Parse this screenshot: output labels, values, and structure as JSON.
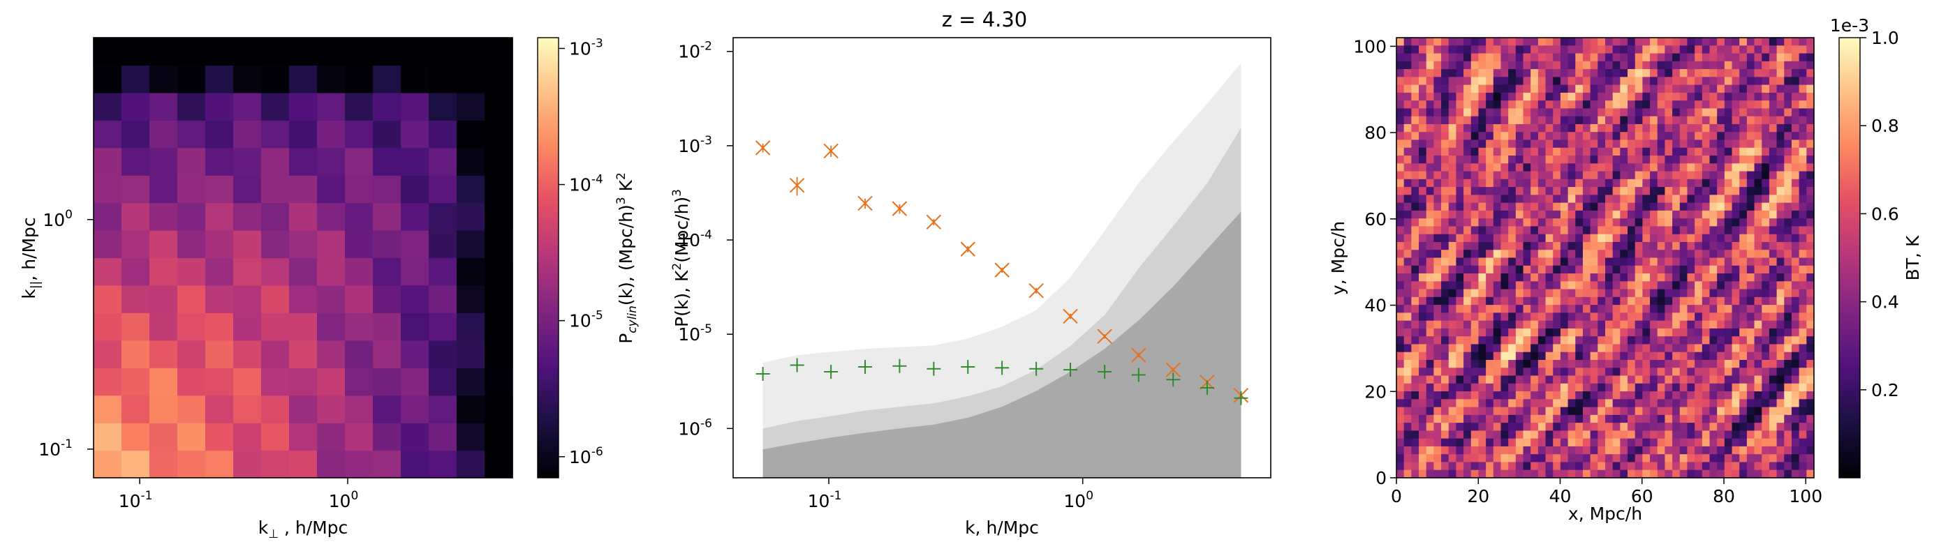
{
  "chart_data": [
    {
      "type": "heatmap",
      "title": "",
      "xlabel": "k",
      "xlabel_sub": "⊥",
      "xlabel_unit": " , h/Mpc",
      "ylabel": "k",
      "ylabel_sub": "||",
      "ylabel_unit": ", h/Mpc",
      "xscale": "log",
      "yscale": "log",
      "xlim": [
        0.06,
        6.2
      ],
      "ylim": [
        0.075,
        6.2
      ],
      "xticks": [
        {
          "v": 0.1,
          "label": "10",
          "exp": "-1"
        },
        {
          "v": 1,
          "label": "10",
          "exp": "0"
        }
      ],
      "yticks": [
        {
          "v": 0.1,
          "label": "10",
          "exp": "-1"
        },
        {
          "v": 1,
          "label": "10",
          "exp": "0"
        }
      ],
      "colorbar": {
        "label": "P",
        "label_sub": "cylin",
        "label_rest": "(k), (Mpc/h)",
        "label_exp": "3",
        "label_tail": " K",
        "label_exp2": "2",
        "scale": "log",
        "range": [
          7e-07,
          0.0012
        ],
        "ticks": [
          {
            "v": 0.001,
            "label": "10",
            "exp": "-3"
          },
          {
            "v": 0.0001,
            "label": "10",
            "exp": "-4"
          },
          {
            "v": 1e-05,
            "label": "10",
            "exp": "-5"
          },
          {
            "v": 1e-06,
            "label": "10",
            "exp": "-6"
          }
        ]
      },
      "colormap": "magma",
      "grid": false
    },
    {
      "type": "scatter",
      "title": "z = 4.30",
      "xlabel": "k, h/Mpc",
      "ylabel": "P(k), K",
      "ylabel_sup": "2",
      "ylabel_rest": "(Mpc/h)",
      "ylabel_sup2": "3",
      "xscale": "log",
      "yscale": "log",
      "xlim": [
        0.042,
        5.5
      ],
      "ylim": [
        3e-07,
        0.014
      ],
      "xticks": [
        {
          "v": 0.1,
          "label": "10",
          "exp": "-1"
        },
        {
          "v": 1,
          "label": "10",
          "exp": "0"
        }
      ],
      "yticks": [
        {
          "v": 0.01,
          "label": "10",
          "exp": "-2"
        },
        {
          "v": 0.001,
          "label": "10",
          "exp": "-3"
        },
        {
          "v": 0.0001,
          "label": "10",
          "exp": "-4"
        },
        {
          "v": 1e-05,
          "label": "10",
          "exp": "-5"
        },
        {
          "v": 1e-06,
          "label": "10",
          "exp": "-6"
        }
      ],
      "series": [
        {
          "marker": "x",
          "color": "#e8701a",
          "x": [
            0.055,
            0.075,
            0.102,
            0.139,
            0.19,
            0.259,
            0.353,
            0.481,
            0.656,
            0.894,
            1.22,
            1.66,
            2.27,
            3.09,
            4.2
          ],
          "y": [
            0.00095,
            0.00038,
            0.00088,
            0.000245,
            0.000215,
            0.000155,
            8e-05,
            4.8e-05,
            2.9e-05,
            1.55e-05,
            9.5e-06,
            6e-06,
            4.2e-06,
            3.1e-06,
            2.25e-06
          ],
          "err": [
            0.0001,
            8.5e-05,
            0.00012,
            3e-05,
            2.5e-05,
            1.2e-05,
            6e-06,
            3e-06,
            2e-06,
            1e-06,
            5e-07,
            3e-07,
            2e-07,
            1.5e-07,
            1e-07
          ]
        },
        {
          "marker": "+",
          "color": "#2e8b2e",
          "x": [
            0.055,
            0.075,
            0.102,
            0.139,
            0.19,
            0.259,
            0.353,
            0.481,
            0.656,
            0.894,
            1.22,
            1.66,
            2.27,
            3.09,
            4.2
          ],
          "y": [
            3.8e-06,
            4.7e-06,
            4e-06,
            4.5e-06,
            4.6e-06,
            4.3e-06,
            4.5e-06,
            4.4e-06,
            4.3e-06,
            4.2e-06,
            4e-06,
            3.7e-06,
            3.3e-06,
            2.7e-06,
            2.1e-06
          ]
        }
      ],
      "bands": [
        {
          "color": "#ececec",
          "x": [
            0.055,
            0.075,
            0.102,
            0.139,
            0.19,
            0.259,
            0.353,
            0.481,
            0.656,
            0.894,
            1.22,
            1.66,
            2.27,
            3.09,
            4.2
          ],
          "y": [
            5e-06,
            6e-06,
            6.5e-06,
            7e-06,
            7.3e-06,
            7.6e-06,
            9e-06,
            1.2e-05,
            1.8e-05,
            4e-05,
            0.000125,
            0.0004,
            0.0011,
            0.0028,
            0.0075
          ]
        },
        {
          "color": "#d2d2d2",
          "x": [
            0.055,
            0.075,
            0.102,
            0.139,
            0.19,
            0.259,
            0.353,
            0.481,
            0.656,
            0.894,
            1.22,
            1.66,
            2.27,
            3.09,
            4.2
          ],
          "y": [
            1e-06,
            1.2e-06,
            1.35e-06,
            1.55e-06,
            1.7e-06,
            1.85e-06,
            2.2e-06,
            2.8e-06,
            4.2e-06,
            7.5e-06,
            1.6e-05,
            5e-05,
            0.00014,
            0.0004,
            0.00155
          ]
        },
        {
          "color": "#a9a9a9",
          "x": [
            0.055,
            0.075,
            0.102,
            0.139,
            0.19,
            0.259,
            0.353,
            0.481,
            0.656,
            0.894,
            1.22,
            1.66,
            2.27,
            3.09,
            4.2
          ],
          "y": [
            6e-07,
            7e-07,
            8e-07,
            9e-07,
            1e-06,
            1.1e-06,
            1.3e-06,
            1.7e-06,
            2.5e-06,
            4e-06,
            7e-06,
            1.4e-05,
            3.2e-05,
            8e-05,
            0.0002
          ]
        }
      ],
      "grid": false
    },
    {
      "type": "heatmap",
      "title": "",
      "xlabel": "x, Mpc/h",
      "ylabel": "y, Mpc/h",
      "xlim": [
        0,
        102
      ],
      "ylim": [
        0,
        102
      ],
      "xticks": [
        0,
        20,
        40,
        60,
        80,
        100
      ],
      "yticks": [
        0,
        20,
        40,
        60,
        80,
        100
      ],
      "colorbar": {
        "label": "BT, K",
        "offset": "1e-3",
        "range": [
          0.0,
          1.0
        ],
        "ticks": [
          0.2,
          0.4,
          0.6,
          0.8,
          1.0
        ],
        "tick_labels": [
          "0.2",
          "0.4",
          "0.6",
          "0.8",
          "1.0"
        ]
      },
      "colormap": "magma",
      "grid": false
    }
  ]
}
